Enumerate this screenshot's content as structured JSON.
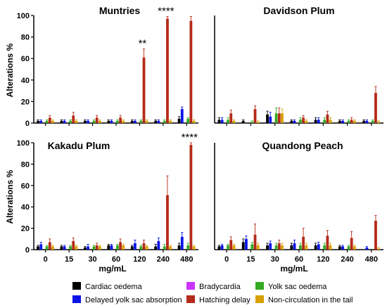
{
  "chart_data": [
    {
      "type": "bar",
      "title": "Muntries",
      "xlabel": "mg/mL",
      "ylabel": "Alterations %",
      "ylim": [
        0,
        100
      ],
      "yticks": [
        "0",
        "20",
        "40",
        "60",
        "80",
        "100"
      ],
      "categories": [
        "0",
        "15",
        "30",
        "60",
        "120",
        "240",
        "480"
      ],
      "series": [
        {
          "name": "Cardiac oedema",
          "values": [
            2,
            2,
            2,
            2,
            2,
            2,
            4
          ],
          "errors": [
            1,
            1,
            1,
            1,
            1,
            1,
            2
          ]
        },
        {
          "name": "Delayed yolk sac absorption",
          "values": [
            2,
            2,
            2,
            2,
            2,
            2,
            13
          ],
          "errors": [
            1,
            1,
            1,
            1,
            1,
            1,
            2
          ]
        },
        {
          "name": "Bradycardia",
          "values": [
            0,
            0,
            0,
            0,
            0,
            0,
            0
          ],
          "errors": [
            0,
            0,
            0,
            0,
            0,
            0,
            0
          ]
        },
        {
          "name": "Yolk sac oedema",
          "values": [
            2,
            2,
            2,
            2,
            2,
            2,
            4
          ],
          "errors": [
            1,
            1,
            1,
            1,
            1,
            1,
            1
          ]
        },
        {
          "name": "Hatching delay",
          "values": [
            5,
            7,
            5,
            5,
            61,
            97,
            95
          ],
          "errors": [
            2,
            3,
            2,
            2,
            8,
            2,
            4
          ]
        },
        {
          "name": "Non-circulation in the tail",
          "values": [
            2,
            2,
            2,
            2,
            2,
            2,
            2
          ],
          "errors": [
            1,
            1,
            1,
            1,
            1,
            1,
            1
          ]
        }
      ],
      "annotations": [
        {
          "category": "120",
          "text": "**"
        },
        {
          "category": "240",
          "text": "****"
        }
      ]
    },
    {
      "type": "bar",
      "title": "Davidson Plum",
      "xlabel": "",
      "ylabel": "",
      "ylim": [
        0,
        100
      ],
      "categories": [
        "0",
        "15",
        "30",
        "60",
        "120",
        "240",
        "480"
      ],
      "series": [
        {
          "name": "Cardiac oedema",
          "values": [
            3,
            2,
            8,
            2,
            3,
            2,
            2
          ],
          "errors": [
            2,
            1,
            3,
            1,
            2,
            1,
            1
          ]
        },
        {
          "name": "Delayed yolk sac absorption",
          "values": [
            3,
            0,
            6,
            2,
            3,
            2,
            2
          ],
          "errors": [
            2,
            1,
            4,
            1,
            2,
            1,
            1
          ]
        },
        {
          "name": "Bradycardia",
          "values": [
            0,
            0,
            0,
            0,
            0,
            0,
            0
          ],
          "errors": [
            0,
            0,
            0,
            0,
            0,
            0,
            0
          ]
        },
        {
          "name": "Yolk sac oedema",
          "values": [
            3,
            1,
            9,
            3,
            3,
            2,
            2
          ],
          "errors": [
            2,
            1,
            5,
            2,
            2,
            1,
            1
          ]
        },
        {
          "name": "Hatching delay",
          "values": [
            9,
            13,
            9,
            5,
            8,
            3,
            28
          ],
          "errors": [
            3,
            3,
            5,
            2,
            3,
            2,
            6
          ]
        },
        {
          "name": "Non-circulation in the tail",
          "values": [
            2,
            1,
            9,
            2,
            3,
            2,
            1
          ],
          "errors": [
            1,
            1,
            4,
            1,
            2,
            1,
            1
          ]
        }
      ],
      "annotations": []
    },
    {
      "type": "bar",
      "title": "Kakadu Plum",
      "xlabel": "mg/mL",
      "ylabel": "Alterations %",
      "ylim": [
        0,
        100
      ],
      "yticks": [
        "0",
        "20",
        "40",
        "60",
        "80",
        "100"
      ],
      "categories": [
        "0",
        "15",
        "30",
        "60",
        "120",
        "240",
        "480"
      ],
      "series": [
        {
          "name": "Cardiac oedema",
          "values": [
            3,
            3,
            2,
            4,
            3,
            3,
            4
          ],
          "errors": [
            1,
            1,
            1,
            1,
            1,
            2,
            2
          ]
        },
        {
          "name": "Delayed yolk sac absorption",
          "values": [
            5,
            3,
            3,
            4,
            6,
            8,
            12
          ],
          "errors": [
            2,
            1,
            2,
            1,
            3,
            3,
            4
          ]
        },
        {
          "name": "Bradycardia",
          "values": [
            0,
            0,
            0,
            0,
            0,
            0,
            0
          ],
          "errors": [
            0,
            0,
            0,
            0,
            0,
            0,
            0
          ]
        },
        {
          "name": "Yolk sac oedema",
          "values": [
            3,
            3,
            3,
            4,
            3,
            3,
            4
          ],
          "errors": [
            1,
            1,
            1,
            1,
            1,
            2,
            2
          ]
        },
        {
          "name": "Hatching delay",
          "values": [
            7,
            8,
            4,
            7,
            6,
            51,
            98
          ],
          "errors": [
            3,
            3,
            2,
            3,
            3,
            18,
            2
          ]
        },
        {
          "name": "Non-circulation in the tail",
          "values": [
            3,
            3,
            3,
            4,
            3,
            3,
            3
          ],
          "errors": [
            1,
            1,
            1,
            1,
            1,
            1,
            1
          ]
        }
      ],
      "annotations": [
        {
          "category": "480",
          "text": "****"
        }
      ]
    },
    {
      "type": "bar",
      "title": "Quandong Peach",
      "xlabel": "mg/mL",
      "ylabel": "",
      "ylim": [
        0,
        100
      ],
      "categories": [
        "0",
        "15",
        "30",
        "60",
        "120",
        "240",
        "480"
      ],
      "series": [
        {
          "name": "Cardiac oedema",
          "values": [
            3,
            7,
            4,
            4,
            4,
            3,
            0
          ],
          "errors": [
            1,
            3,
            2,
            2,
            2,
            1,
            0
          ]
        },
        {
          "name": "Delayed yolk sac absorption",
          "values": [
            4,
            10,
            6,
            6,
            5,
            3,
            2
          ],
          "errors": [
            1,
            3,
            2,
            3,
            2,
            1,
            1
          ]
        },
        {
          "name": "Bradycardia",
          "values": [
            0,
            0,
            0,
            0,
            0,
            0,
            0
          ],
          "errors": [
            0,
            0,
            0,
            0,
            0,
            0,
            0
          ]
        },
        {
          "name": "Yolk sac oedema",
          "values": [
            4,
            5,
            4,
            4,
            4,
            3,
            0
          ],
          "errors": [
            1,
            2,
            2,
            2,
            2,
            1,
            0
          ]
        },
        {
          "name": "Hatching delay",
          "values": [
            9,
            14,
            6,
            12,
            13,
            11,
            27
          ],
          "errors": [
            3,
            10,
            3,
            8,
            5,
            6,
            5
          ]
        },
        {
          "name": "Non-circulation in the tail",
          "values": [
            4,
            4,
            4,
            4,
            4,
            3,
            1
          ],
          "errors": [
            1,
            2,
            2,
            2,
            2,
            1,
            1
          ]
        }
      ],
      "annotations": []
    }
  ],
  "legend": {
    "items": [
      {
        "label": "Cardiac oedema",
        "color": "#000000"
      },
      {
        "label": "Bradycardia",
        "color": "#cc33ff"
      },
      {
        "label": "Yolk sac oedema",
        "color": "#33aa22"
      },
      {
        "label": "Delayed yolk sac absorption",
        "color": "#0a14e6"
      },
      {
        "label": "Hatching delay",
        "color": "#b52a18"
      },
      {
        "label": "Non-circulation in the tail",
        "color": "#d9a005"
      }
    ]
  },
  "colors": {
    "Cardiac oedema": "#000000",
    "Delayed yolk sac absorption": "#0a14e6",
    "Bradycardia": "#cc33ff",
    "Yolk sac oedema": "#33aa22",
    "Hatching delay": "#b52a18",
    "Non-circulation in the tail": "#d9a005"
  }
}
